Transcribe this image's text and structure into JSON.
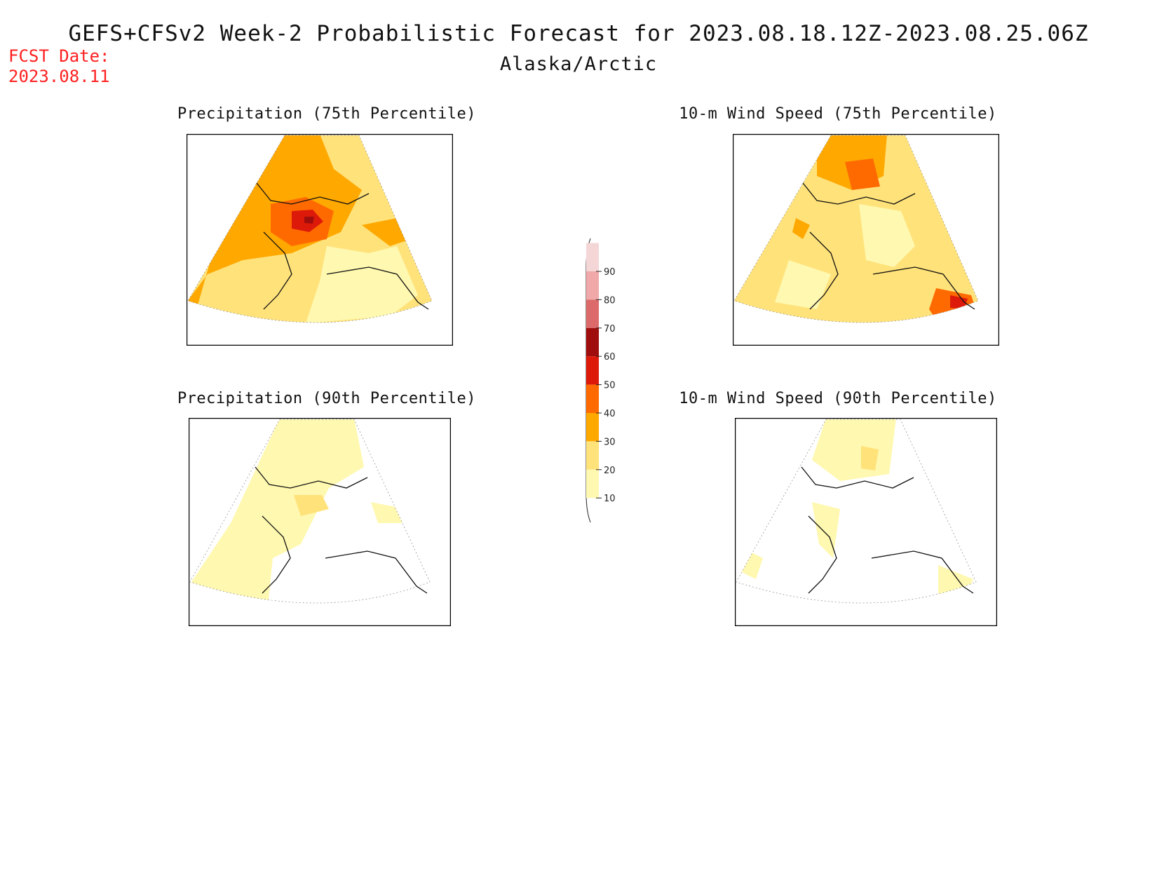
{
  "header": {
    "title": "GEFS+CFSv2 Week-2 Probabilistic Forecast for 2023.08.18.12Z-2023.08.25.06Z",
    "subtitle": "Alaska/Arctic",
    "fcst_label": "FCST Date:",
    "fcst_date": "2023.08.11"
  },
  "panels": [
    {
      "title": "Precipitation (75th Percentile)"
    },
    {
      "title": "10-m Wind Speed (75th Percentile)"
    },
    {
      "title": "Precipitation (90th Percentile)"
    },
    {
      "title": "10-m Wind Speed (90th Percentile)"
    }
  ],
  "colorbar": {
    "ticks": [
      "90",
      "80",
      "70",
      "60",
      "50",
      "40",
      "30",
      "20",
      "10"
    ],
    "colors": [
      "#f5d6d6",
      "#f0a8a8",
      "#dc6a6a",
      "#a00d0d",
      "#dd1a0a",
      "#ff6a00",
      "#ffa800",
      "#ffe27a",
      "#fff8b0"
    ]
  }
}
